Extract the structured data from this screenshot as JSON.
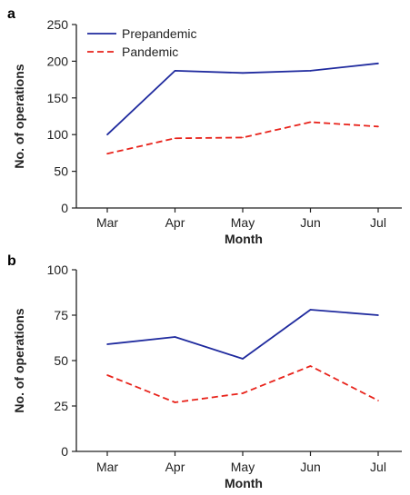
{
  "chart_data": [
    {
      "panel": "a",
      "type": "line",
      "categories": [
        "Mar",
        "Apr",
        "May",
        "Jun",
        "Jul"
      ],
      "series": [
        {
          "name": "Prepandemic",
          "values": [
            100,
            187,
            184,
            187,
            197
          ],
          "color": "#1f2a9e",
          "style": "solid"
        },
        {
          "name": "Pandemic",
          "values": [
            74,
            95,
            96,
            117,
            111
          ],
          "color": "#e8231b",
          "style": "dashed"
        }
      ],
      "xlabel": "Month",
      "ylabel": "No. of operations",
      "ylim": [
        0,
        250
      ],
      "yticks": [
        0,
        50,
        100,
        150,
        200,
        250
      ],
      "legend": "top-left",
      "grid": false
    },
    {
      "panel": "b",
      "type": "line",
      "categories": [
        "Mar",
        "Apr",
        "May",
        "Jun",
        "Jul"
      ],
      "series": [
        {
          "values": [
            59,
            63,
            51,
            78,
            75
          ],
          "color": "#1f2a9e",
          "style": "solid"
        },
        {
          "values": [
            42,
            27,
            32,
            47,
            28
          ],
          "color": "#e8231b",
          "style": "dashed"
        }
      ],
      "xlabel": "Month",
      "ylabel": "No. of operations",
      "ylim": [
        0,
        100
      ],
      "yticks": [
        0,
        25,
        50,
        75,
        100
      ],
      "grid": false
    }
  ]
}
